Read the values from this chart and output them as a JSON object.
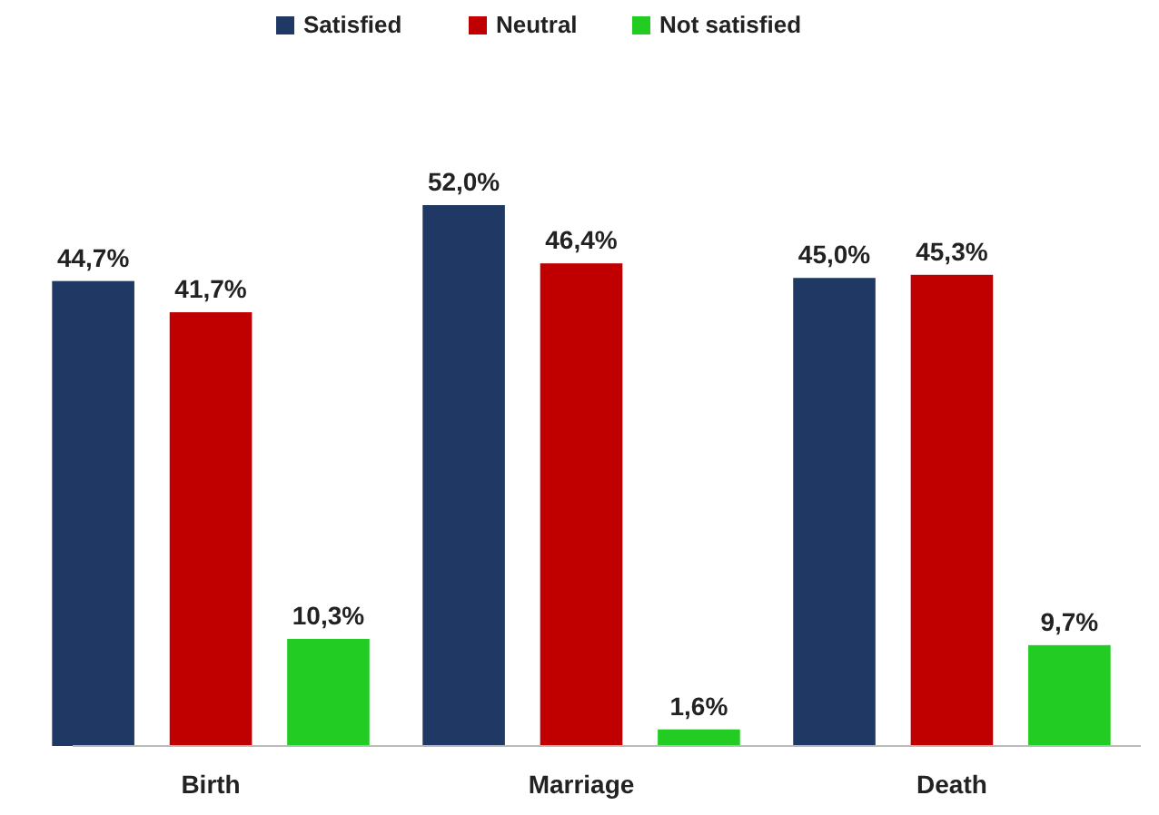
{
  "chart_data": {
    "type": "bar",
    "categories": [
      "Birth",
      "Marriage",
      "Death"
    ],
    "legend": "top",
    "series": [
      {
        "name": "Satisfied",
        "color": "#1f3864",
        "values": [
          44.7,
          52.0,
          45.0
        ],
        "value_labels": [
          "44,7%",
          "52,0%",
          "45,0%"
        ]
      },
      {
        "name": "Neutral",
        "color": "#c00000",
        "values": [
          41.7,
          46.4,
          45.3
        ],
        "value_labels": [
          "41,7%",
          "46,4%",
          "45,3%"
        ]
      },
      {
        "name": "Not satisfied",
        "color": "#22cc22",
        "values": [
          10.3,
          1.6,
          9.7
        ],
        "value_labels": [
          "10,3%",
          "1,6%",
          "9,7%"
        ]
      }
    ]
  }
}
